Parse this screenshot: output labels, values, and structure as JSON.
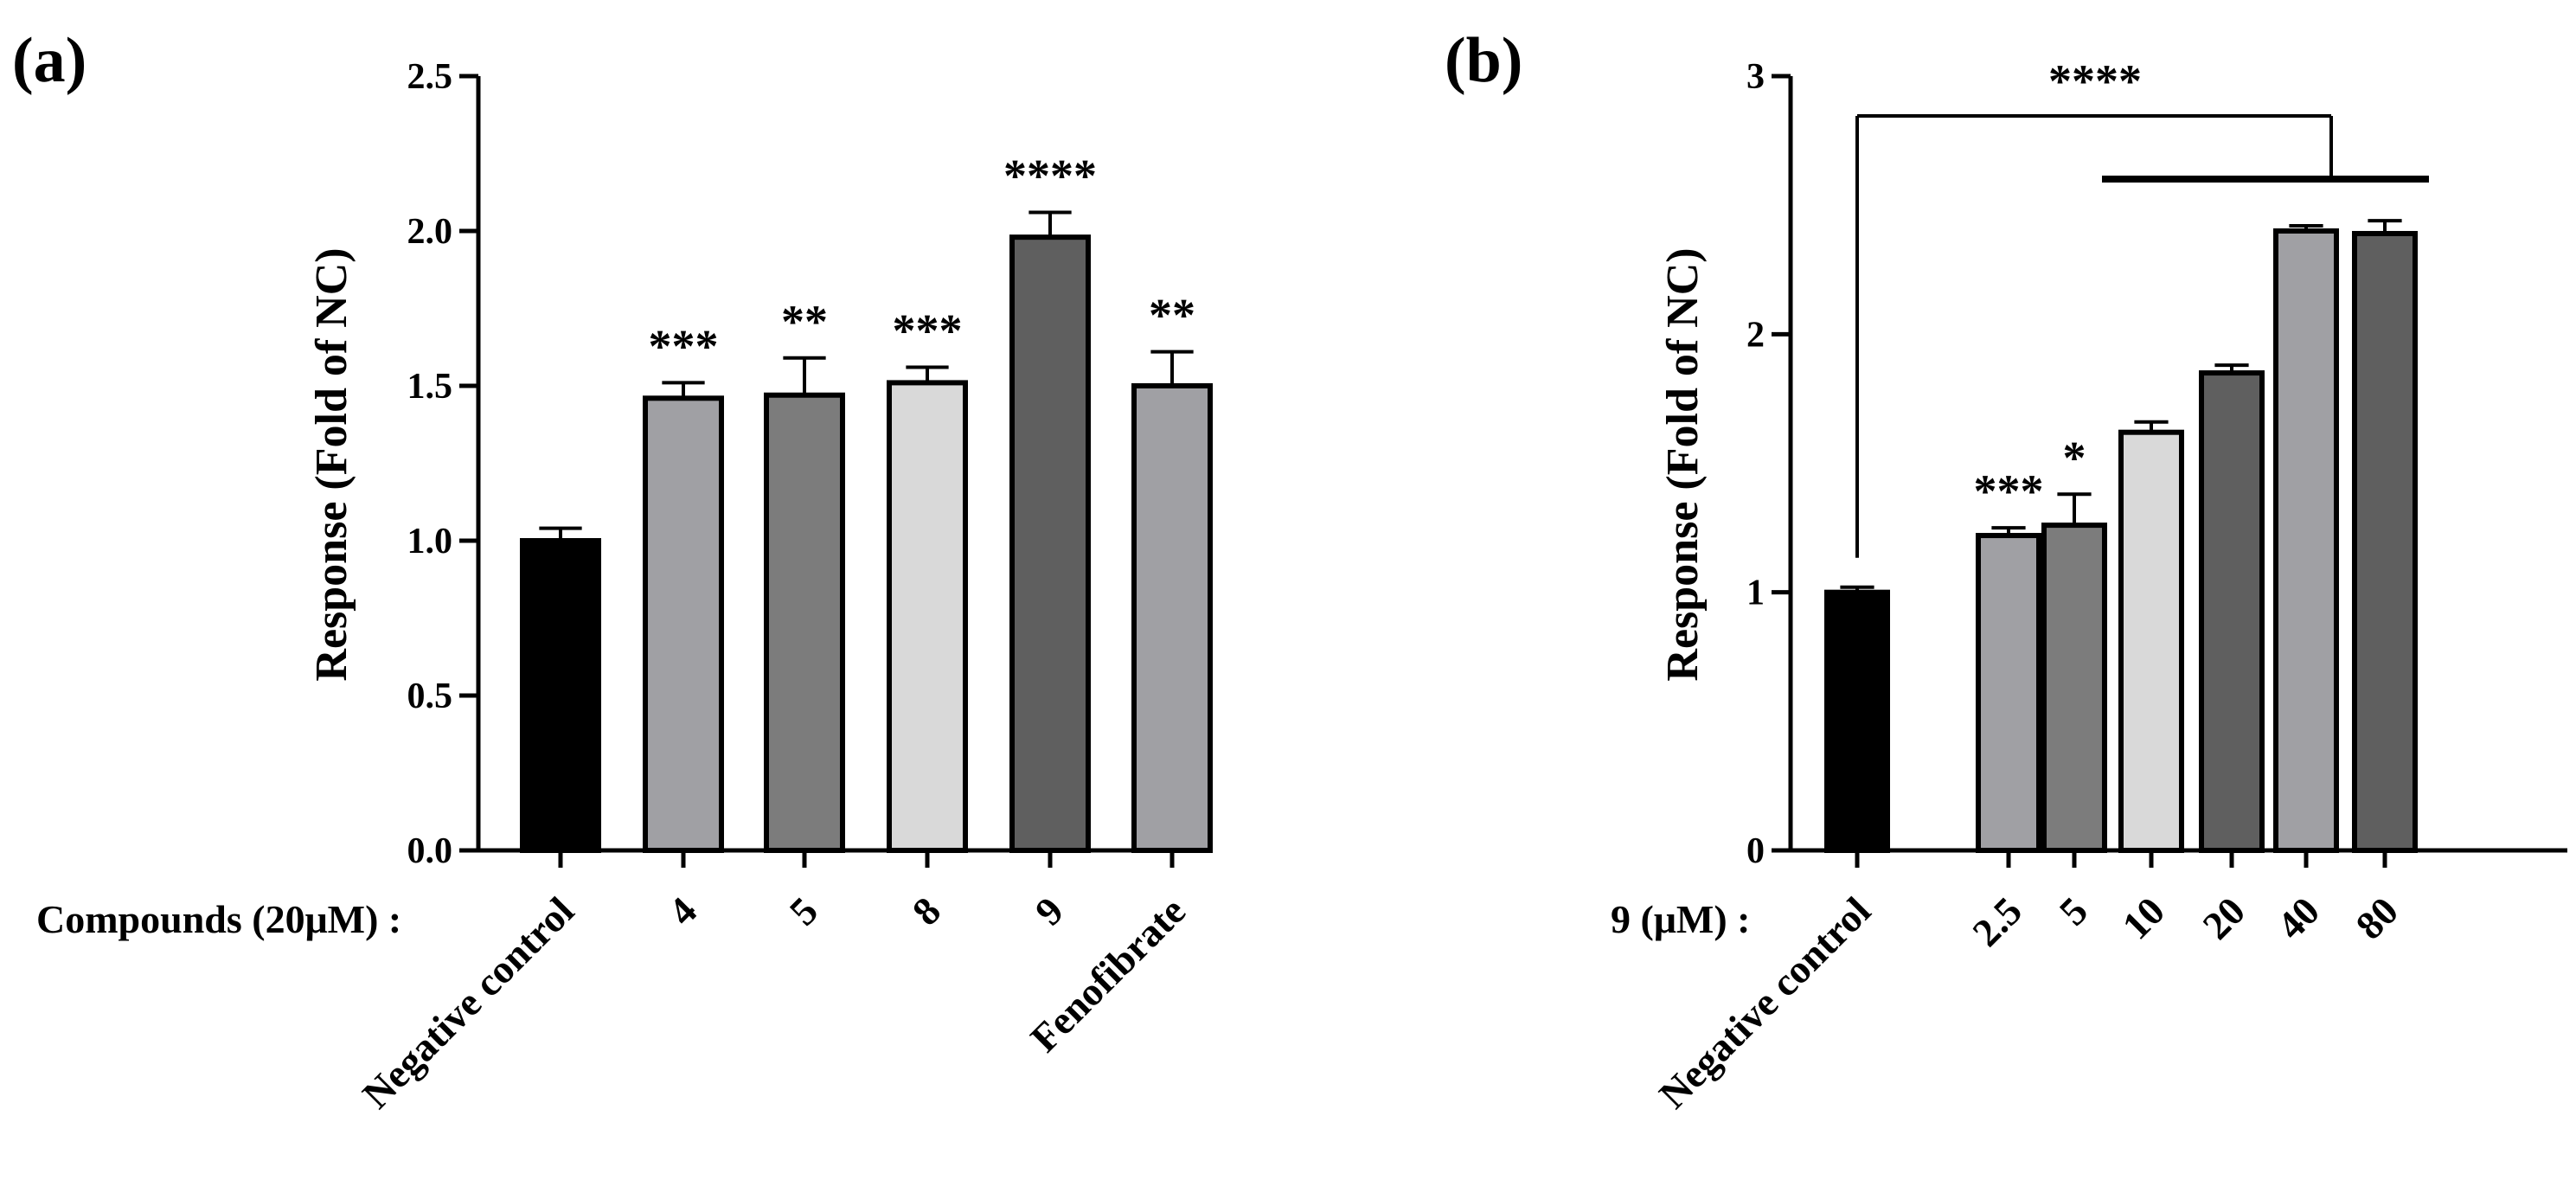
{
  "chart_data": [
    {
      "type": "bar",
      "panel_label": "(a)",
      "xlabel_prefix": "Compounds (20μM) :",
      "ylabel": "Response (Fold of NC)",
      "ylim": [
        0,
        2.5
      ],
      "yticks": [
        "0.0",
        "0.5",
        "1.0",
        "1.5",
        "2.0",
        "2.5"
      ],
      "yticks_values": [
        0,
        0.5,
        1.0,
        1.5,
        2.0,
        2.5
      ],
      "categories": [
        "Negative control",
        "4",
        "5",
        "8",
        "9",
        "Fenofibrate"
      ],
      "values": [
        1.0,
        1.46,
        1.47,
        1.51,
        1.98,
        1.5
      ],
      "errors": [
        0.04,
        0.05,
        0.12,
        0.05,
        0.08,
        0.11
      ],
      "significance": [
        "",
        "***",
        "**",
        "***",
        "****",
        "**"
      ],
      "colors": [
        "#000000",
        "#a0a0a4",
        "#7c7c7c",
        "#d9d9d9",
        "#5f5f5f",
        "#a0a0a4"
      ]
    },
    {
      "type": "bar",
      "panel_label": "(b)",
      "xlabel_prefix": "9 (μM) :",
      "ylabel": "Response (Fold of NC)",
      "ylim": [
        0,
        3
      ],
      "yticks": [
        "0",
        "1",
        "2",
        "3"
      ],
      "yticks_values": [
        0,
        1,
        2,
        3
      ],
      "categories": [
        "Negative control",
        "2.5",
        "5",
        "10",
        "20",
        "40",
        "80"
      ],
      "values": [
        1.0,
        1.22,
        1.26,
        1.62,
        1.85,
        2.4,
        2.39
      ],
      "errors": [
        0.02,
        0.03,
        0.12,
        0.04,
        0.03,
        0.02,
        0.05
      ],
      "significance": [
        "",
        "***",
        "*",
        "",
        "",
        "",
        ""
      ],
      "colors": [
        "#000000",
        "#a0a0a4",
        "#7c7c7c",
        "#d9d9d9",
        "#5f5f5f",
        "#a0a0a4",
        "#5f5f5f"
      ],
      "bracket_label": "****"
    }
  ]
}
